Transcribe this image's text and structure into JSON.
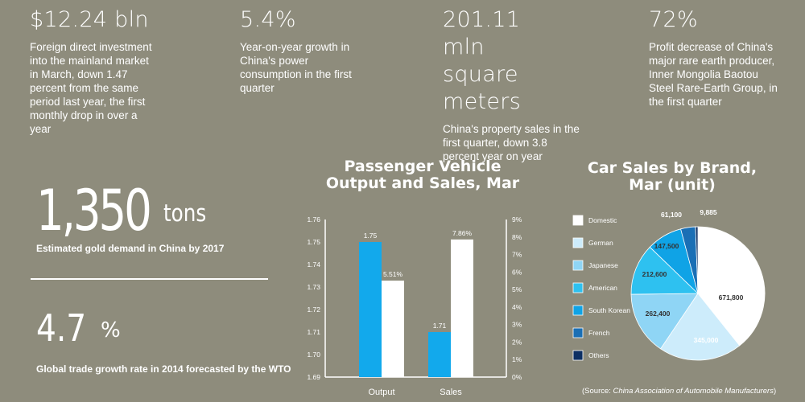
{
  "stats": [
    {
      "value": "$12.24 bln",
      "desc": "Foreign direct investment into the mainland market in March, down 1.47 percent from the same period last year, the first monthly drop in over a year"
    },
    {
      "value": "5.4%",
      "desc": "Year-on-year growth in China's power consumption in the first quarter"
    },
    {
      "value": "201.11 mln square meters",
      "desc": "China's property sales in the first quarter, down 3.8 percent year on year"
    },
    {
      "value": "72%",
      "desc": "Profit decrease of China's major rare earth producer, Inner Mongolia Baotou Steel Rare-Earth Group, in the first quarter"
    }
  ],
  "gold": {
    "value": "1,350",
    "unit": "tons",
    "caption": "Estimated gold demand in China by 2017"
  },
  "trade": {
    "value": "4.7",
    "unit": "%",
    "caption": "Global trade growth rate in 2014 forecasted by the WTO"
  },
  "source": {
    "prefix": "(Source: ",
    "name": "China Association of Automobile Manufacturers",
    "suffix": ")"
  },
  "chart_data": [
    {
      "type": "bar",
      "title": "Passenger Vehicle Output and Sales, Mar",
      "categories": [
        "Output",
        "Sales"
      ],
      "series": [
        {
          "axis": "left",
          "values": [
            1.75,
            1.71
          ],
          "labels": [
            "1.75",
            "1.71"
          ],
          "color": "#12a9ec"
        },
        {
          "axis": "right",
          "values": [
            5.51,
            7.86
          ],
          "labels": [
            "5.51%",
            "7.86%"
          ],
          "color": "#ffffff"
        }
      ],
      "y_left": {
        "ylim": [
          1.69,
          1.76
        ],
        "ticks": [
          "1.76",
          "1.75",
          "1.74",
          "1.73",
          "1.72",
          "1.71",
          "1.70",
          "1.69"
        ]
      },
      "y_right": {
        "ylim": [
          0,
          9
        ],
        "ticks": [
          "9%",
          "8%",
          "7%",
          "6%",
          "5%",
          "4%",
          "3%",
          "2%",
          "1%",
          "0%"
        ]
      }
    },
    {
      "type": "pie",
      "title": "Car Sales by Brand, Mar (unit)",
      "slices": [
        {
          "name": "Domestic",
          "value": 671800,
          "label": "671,800",
          "color": "#ffffff"
        },
        {
          "name": "German",
          "value": 345000,
          "label": "345,000",
          "color": "#cdecfb"
        },
        {
          "name": "Japanese",
          "value": 262400,
          "label": "262,400",
          "color": "#8fd5f5"
        },
        {
          "name": "American",
          "value": 212600,
          "label": "212,600",
          "color": "#2ec1f0"
        },
        {
          "name": "South Korean",
          "value": 147500,
          "label": "147,500",
          "color": "#0fa3e6"
        },
        {
          "name": "French",
          "value": 61100,
          "label": "61,100",
          "color": "#1a6fb5"
        },
        {
          "name": "Others",
          "value": 9885,
          "label": "9,885",
          "color": "#0d2f63"
        }
      ]
    }
  ]
}
